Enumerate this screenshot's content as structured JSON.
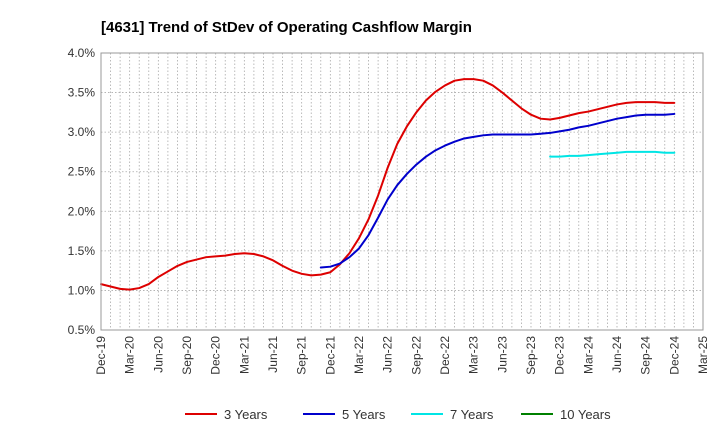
{
  "chart_data": {
    "type": "line",
    "title": "[4631]  Trend of StDev of Operating Cashflow Margin",
    "xlabel": "",
    "ylabel": "",
    "x_ticks": [
      "Dec-19",
      "Mar-20",
      "Jun-20",
      "Sep-20",
      "Dec-20",
      "Mar-21",
      "Jun-21",
      "Sep-21",
      "Dec-21",
      "Mar-22",
      "Jun-22",
      "Sep-22",
      "Dec-22",
      "Mar-23",
      "Jun-23",
      "Sep-23",
      "Dec-23",
      "Mar-24",
      "Jun-24",
      "Sep-24",
      "Dec-24",
      "Mar-25"
    ],
    "y_ticks": [
      "0.5%",
      "1.0%",
      "1.5%",
      "2.0%",
      "2.5%",
      "3.0%",
      "3.5%",
      "4.0%"
    ],
    "ylim": [
      0.5,
      4.0
    ],
    "y_unit": "%",
    "grid": true,
    "legend_position": "bottom",
    "series": [
      {
        "name": "3 Years",
        "color": "#dd0000",
        "points": [
          [
            "Dec-19",
            1.08
          ],
          [
            "Jan-20",
            1.05
          ],
          [
            "Feb-20",
            1.02
          ],
          [
            "Mar-20",
            1.01
          ],
          [
            "Apr-20",
            1.03
          ],
          [
            "May-20",
            1.08
          ],
          [
            "Jun-20",
            1.17
          ],
          [
            "Jul-20",
            1.24
          ],
          [
            "Aug-20",
            1.31
          ],
          [
            "Sep-20",
            1.36
          ],
          [
            "Oct-20",
            1.39
          ],
          [
            "Nov-20",
            1.42
          ],
          [
            "Dec-20",
            1.43
          ],
          [
            "Jan-21",
            1.44
          ],
          [
            "Feb-21",
            1.46
          ],
          [
            "Mar-21",
            1.47
          ],
          [
            "Apr-21",
            1.46
          ],
          [
            "May-21",
            1.43
          ],
          [
            "Jun-21",
            1.38
          ],
          [
            "Jul-21",
            1.31
          ],
          [
            "Aug-21",
            1.25
          ],
          [
            "Sep-21",
            1.21
          ],
          [
            "Oct-21",
            1.19
          ],
          [
            "Nov-21",
            1.2
          ],
          [
            "Dec-21",
            1.23
          ],
          [
            "Jan-22",
            1.33
          ],
          [
            "Feb-22",
            1.47
          ],
          [
            "Mar-22",
            1.66
          ],
          [
            "Apr-22",
            1.9
          ],
          [
            "May-22",
            2.2
          ],
          [
            "Jun-22",
            2.55
          ],
          [
            "Jul-22",
            2.85
          ],
          [
            "Aug-22",
            3.07
          ],
          [
            "Sep-22",
            3.25
          ],
          [
            "Oct-22",
            3.4
          ],
          [
            "Nov-22",
            3.51
          ],
          [
            "Dec-22",
            3.59
          ],
          [
            "Jan-23",
            3.65
          ],
          [
            "Feb-23",
            3.67
          ],
          [
            "Mar-23",
            3.67
          ],
          [
            "Apr-23",
            3.65
          ],
          [
            "May-23",
            3.59
          ],
          [
            "Jun-23",
            3.5
          ],
          [
            "Jul-23",
            3.4
          ],
          [
            "Aug-23",
            3.3
          ],
          [
            "Sep-23",
            3.22
          ],
          [
            "Oct-23",
            3.17
          ],
          [
            "Nov-23",
            3.16
          ],
          [
            "Dec-23",
            3.18
          ],
          [
            "Jan-24",
            3.21
          ],
          [
            "Feb-24",
            3.24
          ],
          [
            "Mar-24",
            3.26
          ],
          [
            "Apr-24",
            3.29
          ],
          [
            "May-24",
            3.32
          ],
          [
            "Jun-24",
            3.35
          ],
          [
            "Jul-24",
            3.37
          ],
          [
            "Aug-24",
            3.38
          ],
          [
            "Sep-24",
            3.38
          ],
          [
            "Oct-24",
            3.38
          ],
          [
            "Nov-24",
            3.37
          ],
          [
            "Dec-24",
            3.37
          ]
        ]
      },
      {
        "name": "5 Years",
        "color": "#0000cc",
        "points": [
          [
            "Nov-21",
            1.29
          ],
          [
            "Dec-21",
            1.3
          ],
          [
            "Jan-22",
            1.34
          ],
          [
            "Feb-22",
            1.42
          ],
          [
            "Mar-22",
            1.53
          ],
          [
            "Apr-22",
            1.7
          ],
          [
            "May-22",
            1.92
          ],
          [
            "Jun-22",
            2.15
          ],
          [
            "Jul-22",
            2.33
          ],
          [
            "Aug-22",
            2.47
          ],
          [
            "Sep-22",
            2.59
          ],
          [
            "Oct-22",
            2.69
          ],
          [
            "Nov-22",
            2.77
          ],
          [
            "Dec-22",
            2.83
          ],
          [
            "Jan-23",
            2.88
          ],
          [
            "Feb-23",
            2.92
          ],
          [
            "Mar-23",
            2.94
          ],
          [
            "Apr-23",
            2.96
          ],
          [
            "May-23",
            2.97
          ],
          [
            "Jun-23",
            2.97
          ],
          [
            "Jul-23",
            2.97
          ],
          [
            "Aug-23",
            2.97
          ],
          [
            "Sep-23",
            2.97
          ],
          [
            "Oct-23",
            2.98
          ],
          [
            "Nov-23",
            2.99
          ],
          [
            "Dec-23",
            3.01
          ],
          [
            "Jan-24",
            3.03
          ],
          [
            "Feb-24",
            3.06
          ],
          [
            "Mar-24",
            3.08
          ],
          [
            "Apr-24",
            3.11
          ],
          [
            "May-24",
            3.14
          ],
          [
            "Jun-24",
            3.17
          ],
          [
            "Jul-24",
            3.19
          ],
          [
            "Aug-24",
            3.21
          ],
          [
            "Sep-24",
            3.22
          ],
          [
            "Oct-24",
            3.22
          ],
          [
            "Nov-24",
            3.22
          ],
          [
            "Dec-24",
            3.23
          ]
        ]
      },
      {
        "name": "7 Years",
        "color": "#00e5e5",
        "points": [
          [
            "Nov-23",
            2.69
          ],
          [
            "Dec-23",
            2.69
          ],
          [
            "Jan-24",
            2.7
          ],
          [
            "Feb-24",
            2.7
          ],
          [
            "Mar-24",
            2.71
          ],
          [
            "Apr-24",
            2.72
          ],
          [
            "May-24",
            2.73
          ],
          [
            "Jun-24",
            2.74
          ],
          [
            "Jul-24",
            2.75
          ],
          [
            "Aug-24",
            2.75
          ],
          [
            "Sep-24",
            2.75
          ],
          [
            "Oct-24",
            2.75
          ],
          [
            "Nov-24",
            2.74
          ],
          [
            "Dec-24",
            2.74
          ]
        ]
      },
      {
        "name": "10 Years",
        "color": "#008000",
        "points": []
      }
    ]
  }
}
